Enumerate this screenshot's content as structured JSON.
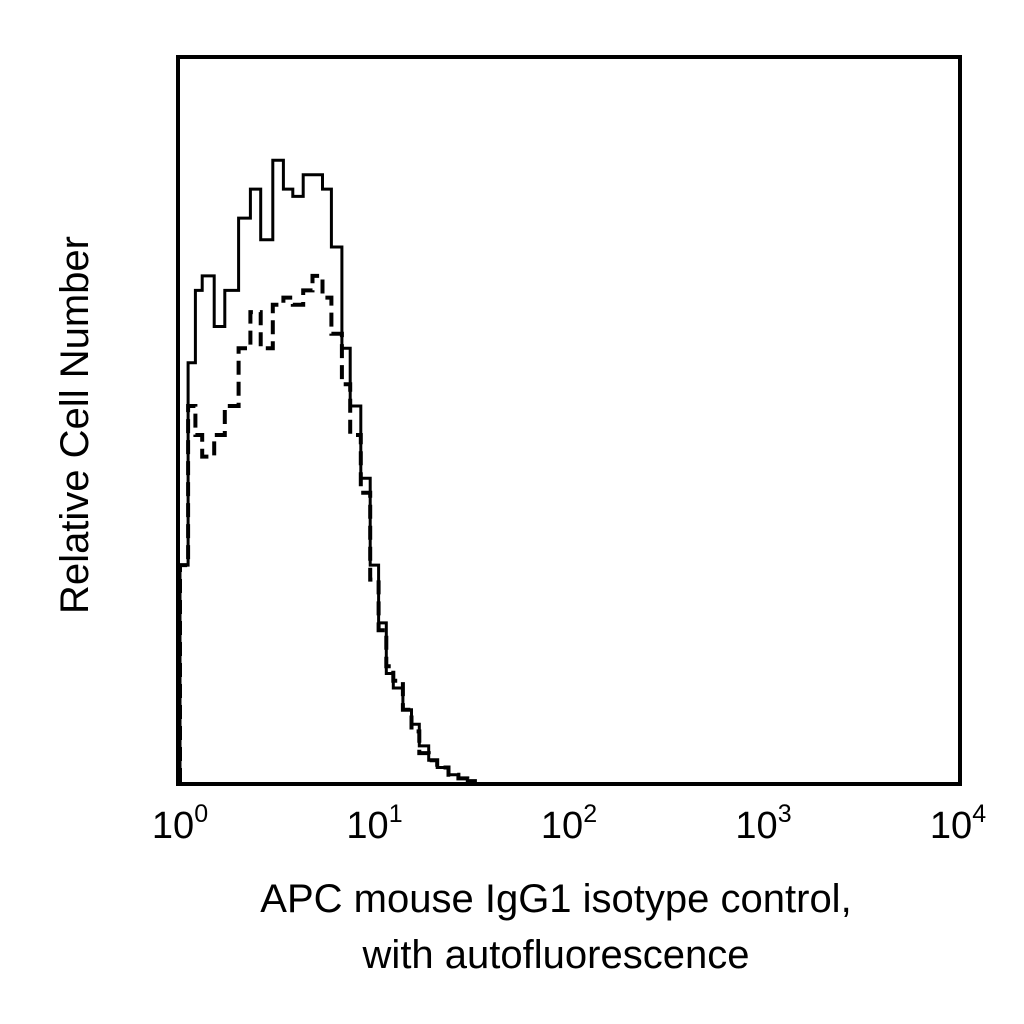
{
  "chart_data": {
    "type": "line",
    "title": "",
    "xlabel": [
      "APC mouse IgG1 isotype control,",
      "with autofluorescence"
    ],
    "ylabel": "Relative Cell Number",
    "xscale": "log",
    "xlim": [
      1,
      10000
    ],
    "ylim": [
      0,
      100
    ],
    "grid": false,
    "legend": "none",
    "x_ticks": [
      {
        "base": "10",
        "exp": "0"
      },
      {
        "base": "10",
        "exp": "1"
      },
      {
        "base": "10",
        "exp": "2"
      },
      {
        "base": "10",
        "exp": "3"
      },
      {
        "base": "10",
        "exp": "4"
      }
    ],
    "series": [
      {
        "style": "solid",
        "color": "#000000",
        "x": [
          1.0,
          1.1,
          1.2,
          1.3,
          1.5,
          1.7,
          2.0,
          2.3,
          2.6,
          3.0,
          3.4,
          3.8,
          4.3,
          4.8,
          5.4,
          6.0,
          6.8,
          7.5,
          8.5,
          9.5,
          10.5,
          11.5,
          12.5,
          14.0,
          15.5,
          17.0,
          19.0,
          21.0,
          24.0,
          27.0,
          30.0,
          33.0
        ],
        "y": [
          30,
          58,
          68,
          70,
          63,
          68,
          78,
          82,
          75,
          86,
          82,
          81,
          84,
          84,
          82,
          74,
          60,
          52,
          42,
          30,
          22,
          15,
          13,
          10,
          8,
          5,
          3,
          2,
          1,
          0.5,
          0.2,
          0
        ]
      },
      {
        "style": "dashed",
        "color": "#000000",
        "x": [
          1.0,
          1.1,
          1.2,
          1.3,
          1.5,
          1.7,
          2.0,
          2.3,
          2.6,
          3.0,
          3.4,
          3.8,
          4.3,
          4.8,
          5.4,
          6.0,
          6.8,
          7.5,
          8.5,
          9.5,
          10.5,
          11.5,
          12.5,
          14.0,
          15.5,
          17.0,
          19.0,
          21.0,
          24.0,
          27.0,
          30.0
        ],
        "y": [
          30,
          52,
          48,
          45,
          48,
          52,
          60,
          65,
          60,
          66,
          67,
          66,
          68,
          70,
          67,
          62,
          55,
          48,
          40,
          28,
          21,
          16,
          14,
          10,
          7,
          4,
          3,
          2,
          1,
          0.5,
          0
        ]
      }
    ]
  }
}
